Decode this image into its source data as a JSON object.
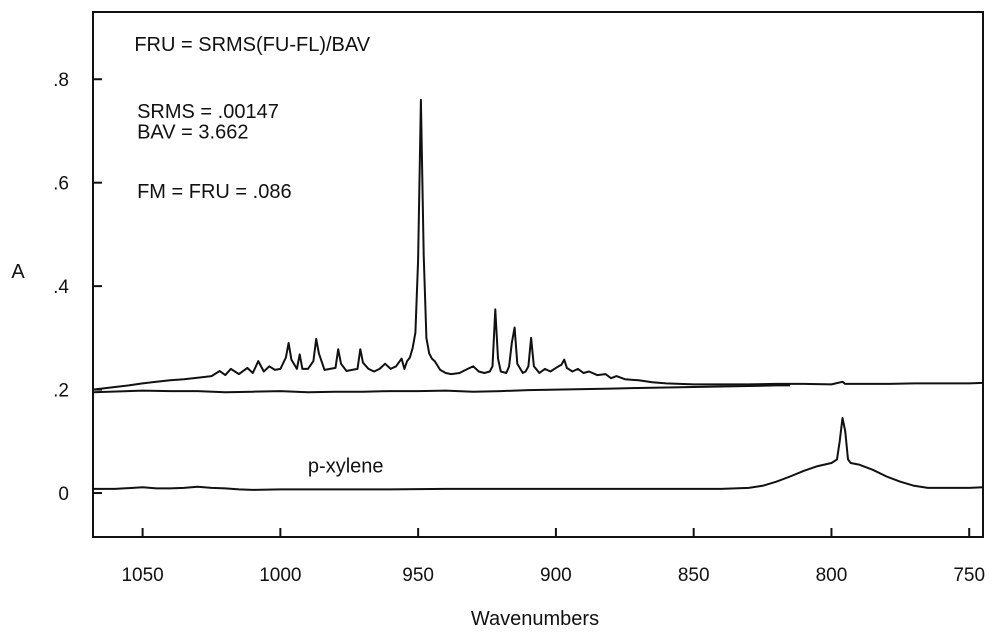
{
  "chart_data": {
    "type": "line",
    "title": "",
    "xlabel": "Wavenumbers",
    "ylabel": "A",
    "xlim": [
      1068,
      745
    ],
    "ylim": [
      -0.085,
      0.93
    ],
    "x_reversed": true,
    "grid": false,
    "x_ticks": [
      1050,
      1000,
      950,
      900,
      850,
      800,
      750
    ],
    "x_tick_labels": [
      "1050",
      "1000",
      "950",
      "900",
      "850",
      "800",
      "750"
    ],
    "y_ticks": [
      0,
      0.2,
      0.4,
      0.6,
      0.8
    ],
    "y_tick_labels": [
      "0",
      ".2",
      ".4",
      ".6",
      ".8"
    ],
    "annotations": [
      {
        "text": "FRU = SRMS(FU-FL)/BAV",
        "x": 1053,
        "y": 0.855
      },
      {
        "text": "SRMS = .00147",
        "x": 1052,
        "y": 0.725
      },
      {
        "text": "BAV = 3.662",
        "x": 1052,
        "y": 0.685
      },
      {
        "text": "FM = FRU = .086",
        "x": 1052,
        "y": 0.57
      },
      {
        "text": "p-xylene",
        "x": 990,
        "y": 0.04
      }
    ],
    "series": [
      {
        "name": "",
        "x": [
          1068,
          1060,
          1055,
          1050,
          1045,
          1040,
          1035,
          1030,
          1025,
          1022,
          1020,
          1018,
          1015,
          1012,
          1010,
          1008,
          1006,
          1004,
          1002,
          1000,
          998,
          997,
          996,
          994,
          993,
          992,
          990,
          988,
          987,
          986,
          984,
          982,
          980,
          979,
          978,
          976,
          974,
          972,
          971,
          970,
          968,
          966,
          964,
          962,
          960,
          958,
          956,
          955,
          954,
          953,
          952,
          951,
          950,
          949,
          948,
          947,
          946,
          945,
          944,
          942,
          940,
          938,
          935,
          932,
          930,
          928,
          926,
          924,
          923,
          922,
          921,
          920,
          918,
          917,
          916,
          915,
          914,
          912,
          911,
          910,
          909,
          908,
          906,
          904,
          902,
          900,
          898,
          897,
          896,
          894,
          892,
          890,
          888,
          885,
          882,
          880,
          878,
          875,
          870,
          865,
          860,
          855,
          850,
          840,
          830,
          820,
          810,
          800,
          796,
          795,
          794,
          790,
          780,
          770,
          760,
          750,
          745
        ],
        "y": [
          0.2,
          0.205,
          0.208,
          0.212,
          0.215,
          0.218,
          0.22,
          0.223,
          0.226,
          0.236,
          0.228,
          0.24,
          0.23,
          0.242,
          0.232,
          0.255,
          0.235,
          0.245,
          0.238,
          0.24,
          0.262,
          0.29,
          0.258,
          0.24,
          0.268,
          0.24,
          0.24,
          0.255,
          0.298,
          0.27,
          0.238,
          0.24,
          0.242,
          0.278,
          0.25,
          0.236,
          0.238,
          0.24,
          0.278,
          0.252,
          0.24,
          0.235,
          0.24,
          0.25,
          0.24,
          0.245,
          0.26,
          0.24,
          0.255,
          0.262,
          0.28,
          0.31,
          0.45,
          0.76,
          0.46,
          0.3,
          0.27,
          0.26,
          0.255,
          0.238,
          0.232,
          0.23,
          0.232,
          0.24,
          0.245,
          0.235,
          0.232,
          0.235,
          0.245,
          0.355,
          0.26,
          0.235,
          0.232,
          0.245,
          0.29,
          0.32,
          0.25,
          0.232,
          0.235,
          0.245,
          0.3,
          0.245,
          0.232,
          0.24,
          0.235,
          0.242,
          0.248,
          0.258,
          0.242,
          0.235,
          0.24,
          0.232,
          0.235,
          0.228,
          0.23,
          0.222,
          0.226,
          0.22,
          0.218,
          0.214,
          0.212,
          0.211,
          0.21,
          0.21,
          0.21,
          0.211,
          0.211,
          0.21,
          0.215,
          0.211,
          0.211,
          0.211,
          0.211,
          0.212,
          0.212,
          0.212,
          0.213
        ]
      },
      {
        "name": "",
        "x": [
          1068,
          1050,
          1040,
          1030,
          1020,
          1010,
          1000,
          990,
          980,
          970,
          960,
          950,
          940,
          930,
          920,
          910,
          900,
          890,
          880,
          870,
          860,
          850,
          840,
          830,
          820,
          815
        ],
        "y": [
          0.195,
          0.198,
          0.197,
          0.197,
          0.195,
          0.196,
          0.197,
          0.195,
          0.196,
          0.196,
          0.197,
          0.197,
          0.198,
          0.196,
          0.197,
          0.199,
          0.2,
          0.201,
          0.202,
          0.203,
          0.204,
          0.205,
          0.206,
          0.207,
          0.208,
          0.208
        ]
      },
      {
        "name": "p-xylene",
        "x": [
          1068,
          1060,
          1050,
          1045,
          1040,
          1035,
          1030,
          1025,
          1020,
          1015,
          1010,
          1000,
          980,
          960,
          940,
          920,
          900,
          880,
          860,
          840,
          830,
          825,
          820,
          815,
          810,
          805,
          800,
          798,
          797,
          796,
          795,
          794,
          793,
          790,
          785,
          780,
          775,
          770,
          765,
          760,
          755,
          750,
          745
        ],
        "y": [
          0.008,
          0.008,
          0.011,
          0.009,
          0.009,
          0.01,
          0.012,
          0.01,
          0.009,
          0.007,
          0.006,
          0.007,
          0.007,
          0.007,
          0.008,
          0.008,
          0.008,
          0.008,
          0.008,
          0.008,
          0.01,
          0.014,
          0.022,
          0.032,
          0.043,
          0.052,
          0.058,
          0.065,
          0.1,
          0.145,
          0.12,
          0.065,
          0.058,
          0.055,
          0.045,
          0.032,
          0.022,
          0.014,
          0.01,
          0.01,
          0.01,
          0.01,
          0.011
        ]
      }
    ]
  }
}
